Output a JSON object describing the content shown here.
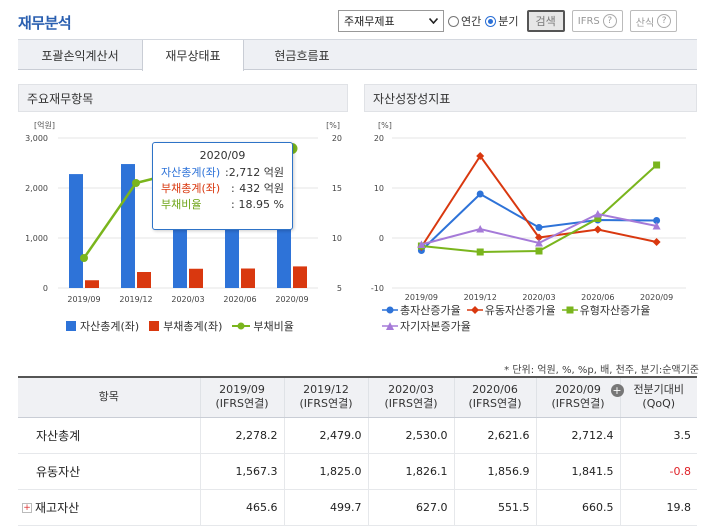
{
  "header": {
    "title": "재무분석",
    "select_value": "주재무제표",
    "radio_annual": "연간",
    "radio_quarter": "분기",
    "search_label": "검색",
    "ifrs_label": "IFRS",
    "calc_label": "산식"
  },
  "tabs": [
    {
      "label": "포괄손익계산서"
    },
    {
      "label": "재무상태표"
    },
    {
      "label": "현금흐름표"
    }
  ],
  "chart1": {
    "panel_title": "주요재무항목",
    "left_unit": "[억원]",
    "right_unit": "[%]",
    "legend": {
      "assets": "자산총계(좌)",
      "liabilities": "부채총계(좌)",
      "ratio": "부채비율"
    },
    "tooltip": {
      "date": "2020/09",
      "rows": [
        {
          "label": "자산총계(좌)",
          "sep": ":",
          "value": "2,712 억원"
        },
        {
          "label": "부채총계(좌)",
          "sep": ":",
          "value": "432 억원"
        },
        {
          "label": "부채비율",
          "sep": ":",
          "value": "18.95 %"
        }
      ]
    }
  },
  "chart2": {
    "panel_title": "자산성장성지표",
    "y_unit": "[%]",
    "legend": {
      "total": "총자산증가율",
      "current": "유동자산증가율",
      "tangible": "유형자산증가율",
      "equity": "자기자본증가율"
    }
  },
  "chart_data": [
    {
      "type": "bar",
      "title": "주요재무항목",
      "categories": [
        "2019/09",
        "2019/12",
        "2020/03",
        "2020/06",
        "2020/09"
      ],
      "series": [
        {
          "name": "자산총계(좌)",
          "axis": "left",
          "color": "#2e73d8",
          "values": [
            2278.2,
            2479.0,
            2530.0,
            2621.6,
            2712.4
          ]
        },
        {
          "name": "부채총계(좌)",
          "axis": "left",
          "color": "#d9380f",
          "values": [
            155,
            320,
            385,
            390,
            432
          ]
        },
        {
          "name": "부채비율",
          "axis": "right",
          "type": "line",
          "color": "#7ab51d",
          "values": [
            8.0,
            15.5,
            16.8,
            17.5,
            18.95
          ]
        }
      ],
      "ylabel_left": "[억원]",
      "ylim_left": [
        0,
        3000
      ],
      "yticks_left": [
        "0",
        "1,000",
        "2,000",
        "3,000"
      ],
      "ylabel_right": "[%]",
      "ylim_right": [
        5,
        20
      ],
      "yticks_right": [
        "5",
        "10",
        "15",
        "20"
      ]
    },
    {
      "type": "line",
      "title": "자산성장성지표",
      "categories": [
        "2019/09",
        "2019/12",
        "2020/03",
        "2020/06",
        "2020/09"
      ],
      "series": [
        {
          "name": "총자산증가율",
          "color": "#2e73d8",
          "marker": "circle",
          "values": [
            -2.5,
            8.8,
            2.1,
            3.6,
            3.5
          ]
        },
        {
          "name": "유동자산증가율",
          "color": "#d9380f",
          "marker": "diamond",
          "values": [
            -1.8,
            16.4,
            0.1,
            1.7,
            -0.8
          ]
        },
        {
          "name": "유형자산증가율",
          "color": "#7ab51d",
          "marker": "square",
          "values": [
            -1.6,
            -2.8,
            -2.6,
            3.9,
            14.6
          ]
        },
        {
          "name": "자기자본증가율",
          "color": "#a57ad8",
          "marker": "triangle",
          "values": [
            -1.3,
            1.8,
            -1.0,
            4.8,
            2.4
          ]
        }
      ],
      "ylabel": "[%]",
      "ylim": [
        -10,
        20
      ],
      "yticks": [
        "-10",
        "0",
        "10",
        "20"
      ]
    }
  ],
  "table": {
    "unit_note": "* 단위: 억원, %, %p, 배, 천주, 분기:순액기준",
    "headers": [
      {
        "line1": "항목",
        "line2": ""
      },
      {
        "line1": "2019/09",
        "line2": "(IFRS연결)"
      },
      {
        "line1": "2019/12",
        "line2": "(IFRS연결)"
      },
      {
        "line1": "2020/03",
        "line2": "(IFRS연결)"
      },
      {
        "line1": "2020/06",
        "line2": "(IFRS연결)"
      },
      {
        "line1": "2020/09",
        "line2": "(IFRS연결)"
      },
      {
        "line1": "전분기대비",
        "line2": "(QoQ)"
      }
    ],
    "rows": [
      {
        "label": "자산총계",
        "values": [
          "2,278.2",
          "2,479.0",
          "2,530.0",
          "2,621.6",
          "2,712.4",
          "3.5"
        ],
        "expandable": false
      },
      {
        "label": "유동자산",
        "values": [
          "1,567.3",
          "1,825.0",
          "1,826.1",
          "1,856.9",
          "1,841.5",
          "-0.8"
        ],
        "expandable": false
      },
      {
        "label": "재고자산",
        "values": [
          "465.6",
          "499.7",
          "627.0",
          "551.5",
          "660.5",
          "19.8"
        ],
        "expandable": true
      }
    ]
  }
}
